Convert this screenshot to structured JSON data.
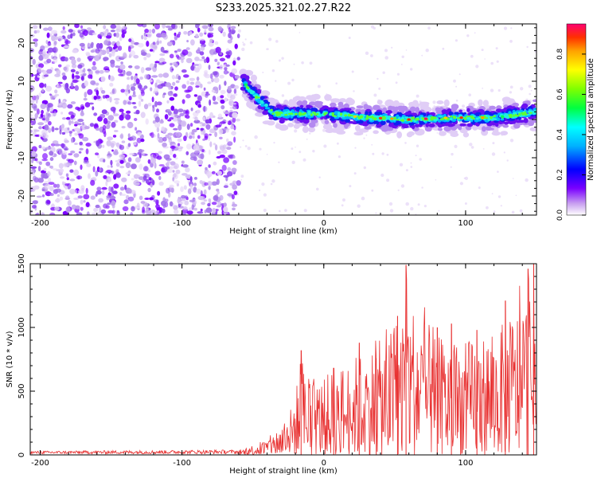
{
  "title": "S233.2025.321.02.27.R22",
  "chart_data": [
    {
      "type": "heatmap",
      "xlabel": "Height of straight line (km)",
      "ylabel": "Frequency (Hz)",
      "xlim": [
        -207,
        150
      ],
      "ylim": [
        -25,
        25
      ],
      "xticks": [
        -200,
        -100,
        0,
        100
      ],
      "yticks": [
        -20,
        -10,
        0,
        10,
        20
      ],
      "colorbar": {
        "label": "Normalized spectral amplitude",
        "range": [
          0,
          0.95
        ],
        "ticks": [
          0.0,
          0.2,
          0.4,
          0.6,
          0.8
        ],
        "colors": [
          "#ffffff",
          "#c8a0f0",
          "#7a00ff",
          "#0000ff",
          "#00b0ff",
          "#00ffff",
          "#00ff40",
          "#80ff00",
          "#ffff00",
          "#ffa000",
          "#ff3000",
          "#ff0070"
        ]
      },
      "features": {
        "noise_region_x": [
          -207,
          -60
        ],
        "signal_track": [
          {
            "x": -57,
            "f": 10
          },
          {
            "x": -50,
            "f": 7
          },
          {
            "x": -42,
            "f": 4
          },
          {
            "x": -35,
            "f": 1.5
          },
          {
            "x": -20,
            "f": 1.5
          },
          {
            "x": 0,
            "f": 1.5
          },
          {
            "x": 30,
            "f": 0.5
          },
          {
            "x": 60,
            "f": 0
          },
          {
            "x": 90,
            "f": 0.5
          },
          {
            "x": 120,
            "f": 0.5
          },
          {
            "x": 150,
            "f": 2
          }
        ]
      }
    },
    {
      "type": "line",
      "xlabel": "Height of straight line (km)",
      "ylabel": "SNR (10 * v/v)",
      "xlim": [
        -207,
        150
      ],
      "ylim": [
        0,
        1500
      ],
      "xticks": [
        -200,
        -100,
        0,
        100
      ],
      "yticks": [
        0,
        500,
        1000,
        1500
      ],
      "color": "#e83030",
      "envelope": [
        {
          "x": -207,
          "max": 30
        },
        {
          "x": -60,
          "max": 40
        },
        {
          "x": -40,
          "max": 150
        },
        {
          "x": -25,
          "max": 350
        },
        {
          "x": -16,
          "max": 820
        },
        {
          "x": -5,
          "max": 680
        },
        {
          "x": 20,
          "max": 900
        },
        {
          "x": 45,
          "max": 1100
        },
        {
          "x": 58,
          "max": 1490
        },
        {
          "x": 80,
          "max": 1100
        },
        {
          "x": 100,
          "max": 1050
        },
        {
          "x": 125,
          "max": 1200
        },
        {
          "x": 145,
          "max": 1500
        },
        {
          "x": 150,
          "max": 900
        }
      ],
      "peaks": [
        {
          "x": -16,
          "y": 820
        },
        {
          "x": 7,
          "y": 680
        },
        {
          "x": 25,
          "y": 880
        },
        {
          "x": 37,
          "y": 760
        },
        {
          "x": 52,
          "y": 1090
        },
        {
          "x": 58,
          "y": 1490
        },
        {
          "x": 80,
          "y": 1000
        },
        {
          "x": 90,
          "y": 1030
        },
        {
          "x": 108,
          "y": 980
        },
        {
          "x": 128,
          "y": 1210
        },
        {
          "x": 144,
          "y": 1460
        },
        {
          "x": 148,
          "y": 1500
        }
      ]
    }
  ]
}
